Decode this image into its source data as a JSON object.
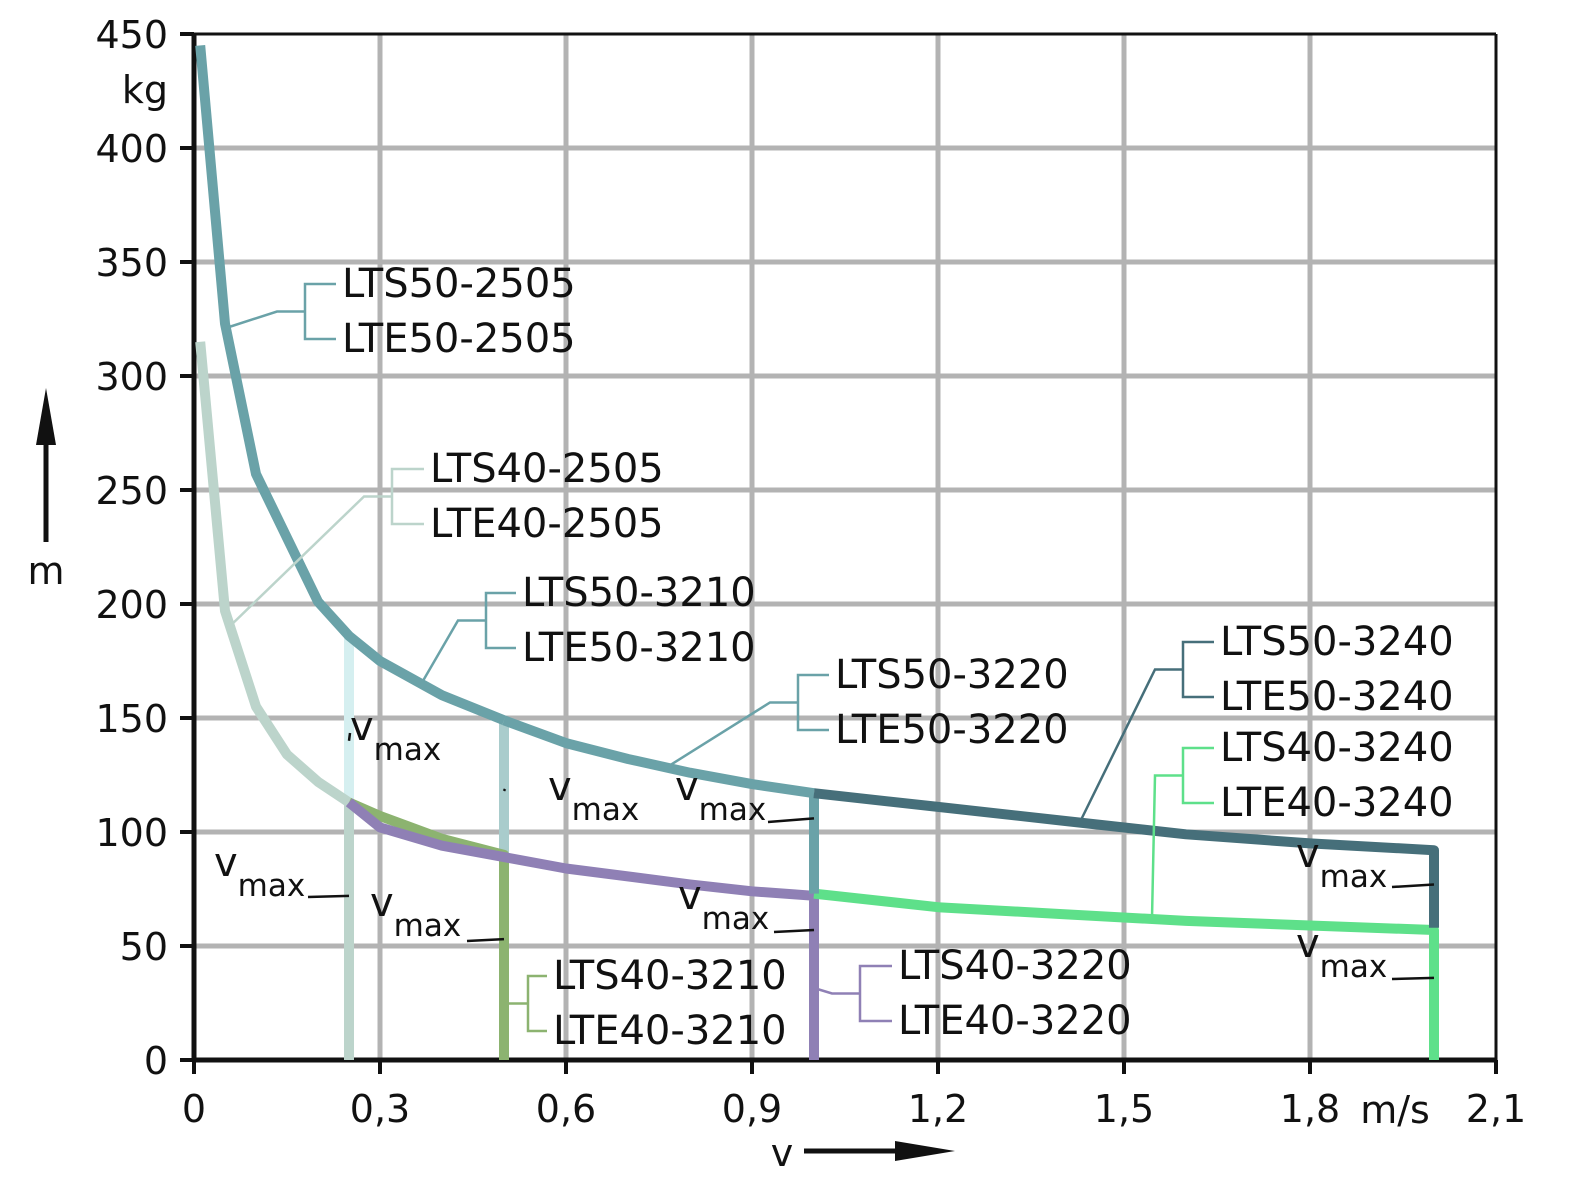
{
  "chart_data": {
    "type": "line",
    "xlabel": "v",
    "ylabel": "m",
    "x_unit": "m/s",
    "y_unit": "kg",
    "xlim": [
      0,
      2.1
    ],
    "ylim": [
      0,
      450
    ],
    "x_ticks": [
      "0",
      "0,3",
      "0,6",
      "0,9",
      "1,2",
      "1,5",
      "1,8",
      "2,1"
    ],
    "y_ticks": [
      "0",
      "50",
      "100",
      "150",
      "200",
      "250",
      "300",
      "350",
      "400",
      "450"
    ],
    "grid": true,
    "vmax_label": "v",
    "vmax_sub": "max",
    "series": [
      {
        "labels": [
          "LTS50-2505",
          "LTE50-2505"
        ],
        "color": "#6aa2a8",
        "points": [
          [
            0.01,
            445
          ],
          [
            0.05,
            323
          ],
          [
            0.1,
            257
          ],
          [
            0.2,
            201
          ],
          [
            0.25,
            186
          ],
          [
            0.3,
            175
          ],
          [
            0.4,
            160
          ],
          [
            0.5,
            149
          ]
        ]
      },
      {
        "labels": [
          "LTS40-2505",
          "LTE40-2505"
        ],
        "color": "#bcd4cb",
        "points": [
          [
            0.01,
            315
          ],
          [
            0.05,
            197
          ],
          [
            0.1,
            155
          ],
          [
            0.15,
            134
          ],
          [
            0.2,
            122
          ],
          [
            0.25,
            113
          ],
          [
            0.25,
            0
          ]
        ]
      },
      {
        "labels": [
          "LTS50-3210",
          "LTE50-3210"
        ],
        "color": "#6aa2a8",
        "points": [
          [
            0.5,
            149
          ],
          [
            0.6,
            139
          ],
          [
            0.7,
            132
          ],
          [
            0.8,
            126
          ],
          [
            0.9,
            121
          ],
          [
            1.0,
            117
          ]
        ]
      },
      {
        "labels": [
          "LTS50-3220",
          "LTE50-3220"
        ],
        "color": "#6aa2a8",
        "points": [
          [
            1.0,
            117
          ],
          [
            1.0,
            73
          ]
        ]
      },
      {
        "labels": [
          "LTS50-3240",
          "LTE50-3240"
        ],
        "color": "#466f7a",
        "points": [
          [
            1.0,
            117
          ],
          [
            1.2,
            111
          ],
          [
            1.4,
            105
          ],
          [
            1.6,
            99
          ],
          [
            1.8,
            95
          ],
          [
            2.0,
            92
          ],
          [
            2.0,
            58
          ]
        ]
      },
      {
        "labels": [
          "LTS40-3210",
          "LTE40-3210"
        ],
        "color": "#8cb370",
        "points": [
          [
            0.25,
            113
          ],
          [
            0.3,
            107
          ],
          [
            0.4,
            97
          ],
          [
            0.5,
            90
          ],
          [
            0.5,
            0
          ]
        ]
      },
      {
        "labels": [
          "LTS40-3220",
          "LTE40-3220"
        ],
        "color": "#8f80b5",
        "points": [
          [
            0.25,
            113
          ],
          [
            0.3,
            102
          ],
          [
            0.4,
            94
          ],
          [
            0.5,
            89
          ],
          [
            0.6,
            84
          ],
          [
            0.8,
            77
          ],
          [
            0.9,
            74
          ],
          [
            1.0,
            72
          ],
          [
            1.0,
            0
          ]
        ]
      },
      {
        "labels": [
          "LTS40-3240",
          "LTE40-3240"
        ],
        "color": "#5ee08a",
        "points": [
          [
            1.0,
            73
          ],
          [
            1.2,
            67
          ],
          [
            1.4,
            64
          ],
          [
            1.6,
            61
          ],
          [
            1.8,
            59
          ],
          [
            2.0,
            57
          ],
          [
            2.0,
            0
          ]
        ]
      }
    ],
    "vmax_markers": [
      {
        "x": 0.25,
        "y0": 0,
        "y1": 186,
        "color": "#d5eff0"
      },
      {
        "x": 0.5,
        "y0": 90,
        "y1": 149,
        "color": "#a9cccc"
      }
    ]
  }
}
